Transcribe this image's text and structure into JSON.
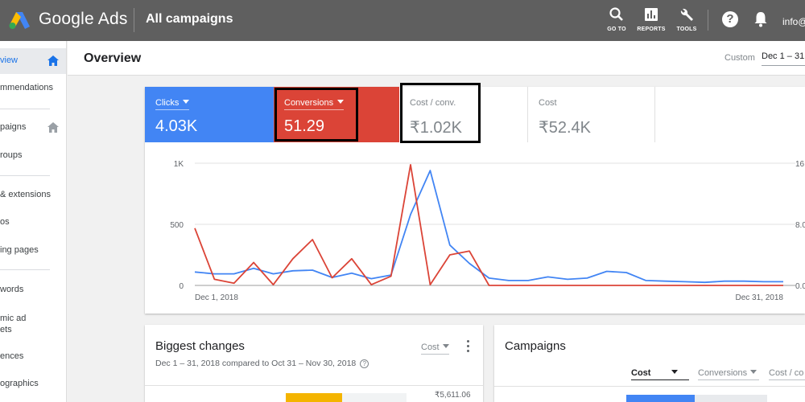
{
  "app": {
    "brand": "Google Ads",
    "page_heading": "All campaigns",
    "account": "info@"
  },
  "toolbar": {
    "goto_label": "GO TO",
    "reports_label": "REPORTS",
    "tools_label": "TOOLS",
    "help_icon": "help-icon",
    "bell_icon": "notifications-icon"
  },
  "sidebar": {
    "items": [
      {
        "label": "view",
        "active": true,
        "icon": "home-icon"
      },
      {
        "label": "mmendations"
      },
      {
        "label": "paigns",
        "icon": "home-icon"
      },
      {
        "label": "roups"
      },
      {
        "label": "& extensions"
      },
      {
        "label": "os"
      },
      {
        "label": "ing pages"
      },
      {
        "label": "words"
      },
      {
        "label": "mic ad",
        "label2": "ets"
      },
      {
        "label": "ences"
      },
      {
        "label": "ographics"
      }
    ]
  },
  "overview": {
    "title": "Overview",
    "custom_label": "Custom",
    "date_range": "Dec 1 – 31"
  },
  "metrics": [
    {
      "label": "Clicks",
      "value": "4.03K",
      "color": "#4285f4"
    },
    {
      "label": "Conversions",
      "value": "51.29",
      "color": "#db4437"
    },
    {
      "label": "Cost / conv.",
      "value": "₹1.02K"
    },
    {
      "label": "Cost",
      "value": "₹52.4K"
    }
  ],
  "chart_data": {
    "type": "line",
    "x": [
      "Dec 1",
      "Dec 2",
      "Dec 3",
      "Dec 4",
      "Dec 5",
      "Dec 6",
      "Dec 7",
      "Dec 8",
      "Dec 9",
      "Dec 10",
      "Dec 11",
      "Dec 12",
      "Dec 13",
      "Dec 14",
      "Dec 15",
      "Dec 16",
      "Dec 17",
      "Dec 18",
      "Dec 19",
      "Dec 20",
      "Dec 21",
      "Dec 22",
      "Dec 23",
      "Dec 24",
      "Dec 25",
      "Dec 26",
      "Dec 27",
      "Dec 28",
      "Dec 29",
      "Dec 30",
      "Dec 31"
    ],
    "x_tick_labels": [
      "Dec 1, 2018",
      "Dec 31, 2018"
    ],
    "left_ticks": [
      "1K",
      "500",
      "0"
    ],
    "right_ticks": [
      "16",
      "8.0",
      "0.0"
    ],
    "ylim_left": [
      0,
      1000
    ],
    "ylim_right": [
      0,
      16
    ],
    "series": [
      {
        "name": "Clicks",
        "color": "#4285f4",
        "axis": "left",
        "values": [
          110,
          95,
          95,
          140,
          95,
          120,
          125,
          65,
          100,
          55,
          85,
          580,
          940,
          330,
          180,
          60,
          40,
          40,
          70,
          50,
          60,
          115,
          105,
          40,
          35,
          30,
          25,
          35,
          35,
          30,
          30
        ]
      },
      {
        "name": "Conversions",
        "color": "#db4437",
        "axis": "right",
        "values": [
          7.5,
          0.8,
          0.3,
          3,
          0.1,
          3.5,
          6,
          1,
          3.5,
          0.1,
          1.2,
          15.8,
          0.1,
          4,
          4.5,
          0,
          0,
          0,
          0,
          0,
          0,
          0,
          0,
          0,
          0,
          0,
          0,
          0,
          0,
          0,
          0
        ]
      }
    ],
    "grid": true
  },
  "biggest_changes": {
    "title": "Biggest changes",
    "subtitle": "Dec 1 – 31, 2018 compared to Oct 31 – Nov 30, 2018",
    "metric": "Cost",
    "first_value": "₹5,611.06"
  },
  "campaigns": {
    "title": "Campaigns",
    "columns": [
      "Cost",
      "Conversions",
      "Cost / co"
    ]
  }
}
